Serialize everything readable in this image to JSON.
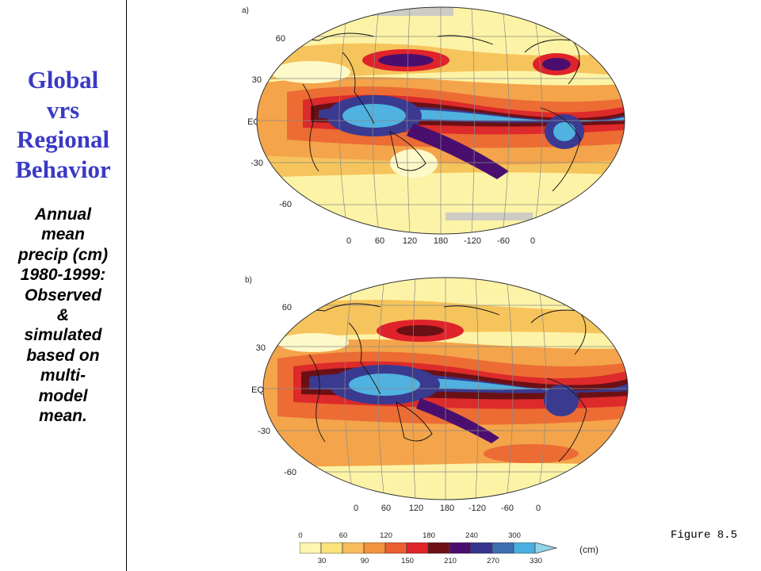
{
  "sidebar": {
    "title_lines": [
      "Global",
      "vrs",
      "Regional",
      "Behavior"
    ],
    "subtitle_lines": [
      "Annual",
      "mean",
      "precip (cm)",
      "1980-1999:",
      "Observed",
      "&",
      "simulated",
      "based on",
      "multi-",
      "model",
      "mean."
    ]
  },
  "panels": [
    {
      "label": "a)",
      "name": "observed"
    },
    {
      "label": "b)",
      "name": "simulated"
    }
  ],
  "lat_labels": [
    "60",
    "30",
    "EQ",
    "-30",
    "-60"
  ],
  "lon_labels": [
    "0",
    "60",
    "120",
    "180",
    "-120",
    "-60",
    "0"
  ],
  "colorbar": {
    "top_ticks": [
      "0",
      "60",
      "120",
      "180",
      "240",
      "300"
    ],
    "bottom_ticks": [
      "30",
      "90",
      "150",
      "210",
      "270",
      "330"
    ],
    "unit": "(cm)",
    "colors": [
      "#fdf6b0",
      "#fbe27a",
      "#f8bd5a",
      "#f3933f",
      "#ea5e2f",
      "#e0232a",
      "#6e0f16",
      "#4a0f6e",
      "#36348f",
      "#3f6fb0",
      "#4aaee0",
      "#8fd4ea"
    ]
  },
  "figure_label": "Figure 8.5"
}
